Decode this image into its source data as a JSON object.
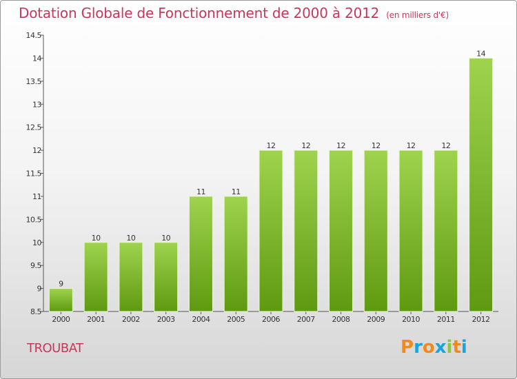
{
  "title": "Dotation Globale de Fonctionnement de 2000 à 2012",
  "subtitle": "(en milliers d'€)",
  "commune": "TROUBAT",
  "logo": {
    "letters": [
      "P",
      "r",
      "o",
      "x",
      "i",
      "t",
      "i"
    ],
    "colors": [
      "#f08a1e",
      "#1aa3dd",
      "#f08a1e",
      "#1aa3dd",
      "#8cc63f",
      "#f08a1e",
      "#1aa3dd"
    ]
  },
  "colors": {
    "bar_top": "#9fd34e",
    "bar_bottom": "#5e9a10",
    "title": "#c8375a"
  },
  "chart_data": {
    "type": "bar",
    "categories": [
      "2000",
      "2001",
      "2002",
      "2003",
      "2004",
      "2005",
      "2006",
      "2007",
      "2008",
      "2009",
      "2010",
      "2011",
      "2012"
    ],
    "values": [
      9,
      10,
      10,
      10,
      11,
      11,
      12,
      12,
      12,
      12,
      12,
      12,
      14
    ],
    "value_labels": [
      "9",
      "10",
      "10",
      "10",
      "11",
      "11",
      "12",
      "12",
      "12",
      "12",
      "12",
      "12",
      "14"
    ],
    "ylim": [
      8.5,
      14.5
    ],
    "yticks": [
      8.5,
      9,
      9.5,
      10,
      10.5,
      11,
      11.5,
      12,
      12.5,
      13,
      13.5,
      14,
      14.5
    ],
    "ytick_labels": [
      "8.5",
      "9",
      "9.5",
      "10",
      "10.5",
      "11",
      "11.5",
      "12",
      "12.5",
      "13",
      "13.5",
      "14",
      "14.5"
    ],
    "xlabel": "",
    "ylabel": "",
    "grid": false
  }
}
